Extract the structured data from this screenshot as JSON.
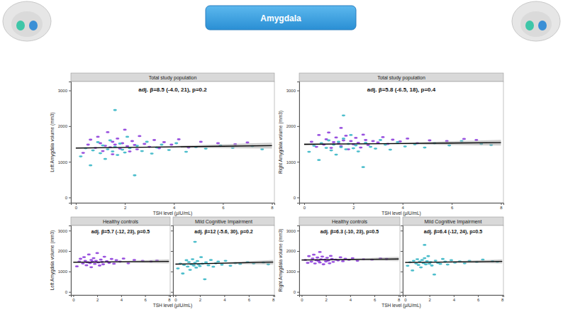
{
  "header": {
    "title": "Amygdala"
  },
  "chart_data": [
    {
      "type": "scatter",
      "y_label": "Left Amygdala volume (mm3)",
      "x_label": "TSH level (µIU/mL)",
      "xlim": [
        -0.2,
        8.1
      ],
      "ylim": [
        -150,
        3250
      ],
      "xticks": [
        0,
        2,
        4,
        6,
        8
      ],
      "yticks": [
        0,
        1000,
        2000,
        3000
      ],
      "grid": false,
      "panels": [
        {
          "title": "Total study population",
          "annotation": "adj. β=8.5 (-4.0, 21), p=0.2",
          "series": [
            {
              "color": "#8e3fdb",
              "marker": "dash",
              "x": [
                0.3,
                0.5,
                0.6,
                0.8,
                0.9,
                1.0,
                1.1,
                1.2,
                1.3,
                1.4,
                1.5,
                1.5,
                1.6,
                1.7,
                1.8,
                1.9,
                2.0,
                2.1,
                2.2,
                2.3,
                2.4,
                2.5,
                2.6,
                2.8,
                3.0,
                3.2,
                3.4,
                3.6,
                3.9,
                4.2,
                4.6,
                5.1,
                5.8,
                6.5,
                7.0
              ],
              "values": [
                1250,
                1480,
                1620,
                1390,
                1700,
                1520,
                1300,
                1450,
                1830,
                1410,
                1560,
                1210,
                1480,
                1650,
                1370,
                1520,
                1900,
                1440,
                1290,
                1580,
                1470,
                1350,
                1720,
                1500,
                1420,
                1610,
                1380,
                1550,
                1480,
                1630,
                1400,
                1560,
                1520,
                1490,
                1540
              ]
            },
            {
              "color": "#3ab7c6",
              "marker": "dash",
              "x": [
                0.2,
                0.4,
                0.6,
                0.7,
                0.9,
                1.0,
                1.1,
                1.2,
                1.3,
                1.4,
                1.5,
                1.6,
                1.7,
                1.8,
                1.9,
                2.0,
                2.1,
                2.2,
                2.4,
                2.5,
                2.7,
                2.9,
                3.1,
                3.3,
                3.5,
                3.8,
                4.1,
                4.5,
                4.9,
                5.3,
                5.9,
                6.4,
                7.2,
                7.6,
                1.6
              ],
              "values": [
                1150,
                1380,
                900,
                1320,
                1550,
                1240,
                1460,
                1080,
                1350,
                1600,
                1290,
                1420,
                1190,
                1510,
                1340,
                1260,
                1700,
                1380,
                620,
                1450,
                1300,
                1560,
                1230,
                1400,
                1480,
                1330,
                1520,
                1280,
                1410,
                1370,
                1460,
                1390,
                1440,
                1350,
                2450
              ]
            }
          ],
          "trend": {
            "x": [
              0,
              2,
              4,
              6,
              8
            ],
            "y": [
              1385,
              1402,
              1419,
              1436,
              1453
            ],
            "lower": [
              1360,
              1390,
              1395,
              1380,
              1370
            ],
            "upper": [
              1410,
              1414,
              1443,
              1492,
              1536
            ]
          }
        }
      ]
    },
    {
      "type": "scatter",
      "y_label": "Right Amygdala volume (mm3)",
      "x_label": "TSH level (µIU/mL)",
      "xlim": [
        -0.2,
        8.1
      ],
      "ylim": [
        -150,
        3250
      ],
      "xticks": [
        0,
        2,
        4,
        6,
        8
      ],
      "yticks": [
        0,
        1000,
        2000,
        3000
      ],
      "grid": false,
      "panels": [
        {
          "title": "Total study population",
          "annotation": "adj. β=5.8 (-6.5, 18), p=0.4",
          "series": [
            {
              "color": "#8e3fdb",
              "marker": "dash",
              "x": [
                0.3,
                0.5,
                0.6,
                0.8,
                0.9,
                1.0,
                1.1,
                1.2,
                1.3,
                1.4,
                1.5,
                1.5,
                1.6,
                1.7,
                1.8,
                1.9,
                2.0,
                2.1,
                2.2,
                2.3,
                2.4,
                2.5,
                2.6,
                2.8,
                3.0,
                3.2,
                3.4,
                3.6,
                3.9,
                4.2,
                4.6,
                5.1,
                5.8,
                6.5,
                7.0
              ],
              "values": [
                1560,
                1420,
                1750,
                1480,
                1630,
                1820,
                1390,
                1550,
                1680,
                1510,
                1950,
                1440,
                1600,
                1730,
                1350,
                1580,
                1490,
                1670,
                1530,
                1400,
                1760,
                1610,
                1470,
                1580,
                1540,
                1690,
                1500,
                1620,
                1570,
                1650,
                1520,
                1600,
                1580,
                1640,
                1610
              ]
            },
            {
              "color": "#3ab7c6",
              "marker": "dash",
              "x": [
                0.2,
                0.4,
                0.6,
                0.7,
                0.9,
                1.0,
                1.1,
                1.2,
                1.3,
                1.4,
                1.5,
                1.6,
                1.7,
                1.8,
                1.9,
                2.0,
                2.1,
                2.2,
                2.4,
                2.5,
                2.7,
                2.9,
                3.1,
                3.3,
                3.5,
                3.8,
                4.1,
                4.5,
                4.9,
                5.3,
                5.9,
                6.4,
                7.2,
                7.6,
                1.6
              ],
              "values": [
                1280,
                1450,
                1050,
                1520,
                1390,
                1600,
                1320,
                1480,
                1200,
                1560,
                1410,
                1650,
                1350,
                1500,
                1750,
                1380,
                1460,
                1290,
                850,
                1530,
                1420,
                1370,
                1610,
                1480,
                1340,
                1550,
                1430,
                1490,
                1400,
                1520,
                1460,
                1580,
                1500,
                1470,
                2300
              ]
            }
          ],
          "trend": {
            "x": [
              0,
              2,
              4,
              6,
              8
            ],
            "y": [
              1490,
              1502,
              1513,
              1525,
              1536
            ],
            "lower": [
              1465,
              1490,
              1490,
              1470,
              1455
            ],
            "upper": [
              1515,
              1514,
              1536,
              1580,
              1617
            ]
          }
        }
      ]
    },
    {
      "type": "scatter",
      "y_label": "Left Amygdala volume (mm3)",
      "x_label": "TSH level (µIU/mL)",
      "xlim": [
        -0.2,
        8.1
      ],
      "ylim": [
        -150,
        3250
      ],
      "xticks": [
        0,
        2,
        4,
        6,
        8
      ],
      "yticks": [
        0,
        1000,
        2000,
        3000
      ],
      "grid": false,
      "panels": [
        {
          "title": "Healthy controls",
          "annotation": "adj. β=5.7 (-12, 23), p=0.5",
          "series": [
            {
              "color": "#8e3fdb",
              "marker": "dash",
              "x": [
                0.3,
                0.5,
                0.6,
                0.8,
                0.9,
                1.0,
                1.1,
                1.2,
                1.3,
                1.4,
                1.5,
                1.5,
                1.6,
                1.7,
                1.8,
                1.9,
                2.0,
                2.1,
                2.2,
                2.3,
                2.4,
                2.5,
                2.6,
                2.8,
                3.0,
                3.2,
                3.4,
                3.6,
                3.9,
                4.2,
                4.6,
                5.1,
                5.8,
                6.5,
                7.0
              ],
              "values": [
                1250,
                1480,
                1620,
                1390,
                1700,
                1520,
                1300,
                1450,
                1830,
                1410,
                1560,
                1210,
                1480,
                1650,
                1370,
                1520,
                1900,
                1440,
                1290,
                1580,
                1470,
                1350,
                1720,
                1500,
                1420,
                1610,
                1380,
                1550,
                1480,
                1630,
                1400,
                1560,
                1520,
                1490,
                1540
              ]
            }
          ],
          "trend": {
            "x": [
              0,
              2,
              4,
              6,
              8
            ],
            "y": [
              1450,
              1461,
              1473,
              1484,
              1496
            ],
            "lower": [
              1415,
              1445,
              1440,
              1415,
              1395
            ],
            "upper": [
              1485,
              1477,
              1506,
              1553,
              1597
            ]
          }
        },
        {
          "title": "Mild Cognitive Impairment",
          "annotation": "adj. β=12 (-5.6, 30), p=0.2",
          "tick_labels": "x",
          "series": [
            {
              "color": "#3ab7c6",
              "marker": "dash",
              "x": [
                0.2,
                0.4,
                0.6,
                0.7,
                0.9,
                1.0,
                1.1,
                1.2,
                1.3,
                1.4,
                1.5,
                1.6,
                1.7,
                1.8,
                1.9,
                2.0,
                2.1,
                2.2,
                2.4,
                2.5,
                2.7,
                2.9,
                3.1,
                3.3,
                3.5,
                3.8,
                4.1,
                4.5,
                4.9,
                5.3,
                5.9,
                6.4,
                7.2,
                7.6,
                1.6
              ],
              "values": [
                1150,
                1380,
                900,
                1320,
                1550,
                1240,
                1460,
                1080,
                1350,
                1600,
                1290,
                1420,
                1190,
                1510,
                1340,
                1260,
                1700,
                1380,
                620,
                1450,
                1300,
                1560,
                1230,
                1400,
                1480,
                1330,
                1520,
                1280,
                1410,
                1370,
                1460,
                1390,
                1440,
                1350,
                2450
              ]
            }
          ],
          "trend": {
            "x": [
              0,
              2,
              4,
              6,
              8
            ],
            "y": [
              1360,
              1384,
              1408,
              1432,
              1456
            ],
            "lower": [
              1330,
              1365,
              1370,
              1360,
              1345
            ],
            "upper": [
              1390,
              1403,
              1446,
              1504,
              1567
            ]
          }
        }
      ]
    },
    {
      "type": "scatter",
      "y_label": "Right Amygdala volume (mm3)",
      "x_label": "TSH level (µIU/mL)",
      "xlim": [
        -0.2,
        8.1
      ],
      "ylim": [
        -150,
        3250
      ],
      "xticks": [
        0,
        2,
        4,
        6,
        8
      ],
      "yticks": [
        0,
        1000,
        2000,
        3000
      ],
      "grid": false,
      "panels": [
        {
          "title": "Healthy controls",
          "annotation": "adj. β=6.3 (-10, 23), p=0.5",
          "series": [
            {
              "color": "#8e3fdb",
              "marker": "dash",
              "x": [
                0.3,
                0.5,
                0.6,
                0.8,
                0.9,
                1.0,
                1.1,
                1.2,
                1.3,
                1.4,
                1.5,
                1.5,
                1.6,
                1.7,
                1.8,
                1.9,
                2.0,
                2.1,
                2.2,
                2.3,
                2.4,
                2.5,
                2.6,
                2.8,
                3.0,
                3.2,
                3.4,
                3.6,
                3.9,
                4.2,
                4.6,
                5.1,
                5.8,
                6.5,
                7.0
              ],
              "values": [
                1560,
                1420,
                1750,
                1480,
                1630,
                1820,
                1390,
                1550,
                1680,
                1510,
                1950,
                1440,
                1600,
                1730,
                1350,
                1580,
                1490,
                1670,
                1530,
                1400,
                1760,
                1610,
                1470,
                1580,
                1540,
                1690,
                1500,
                1620,
                1570,
                1650,
                1520,
                1600,
                1580,
                1640,
                1610
              ]
            }
          ],
          "trend": {
            "x": [
              0,
              2,
              4,
              6,
              8
            ],
            "y": [
              1560,
              1573,
              1585,
              1598,
              1610
            ],
            "lower": [
              1525,
              1555,
              1550,
              1525,
              1505
            ],
            "upper": [
              1595,
              1591,
              1620,
              1671,
              1715
            ]
          }
        },
        {
          "title": "Mild Cognitive Impairment",
          "annotation": "adj. β=6.4 (-12, 24), p=0.5",
          "tick_labels": "x",
          "series": [
            {
              "color": "#3ab7c6",
              "marker": "dash",
              "x": [
                0.2,
                0.4,
                0.6,
                0.7,
                0.9,
                1.0,
                1.1,
                1.2,
                1.3,
                1.4,
                1.5,
                1.6,
                1.7,
                1.8,
                1.9,
                2.0,
                2.1,
                2.2,
                2.4,
                2.5,
                2.7,
                2.9,
                3.1,
                3.3,
                3.5,
                3.8,
                4.1,
                4.5,
                4.9,
                5.3,
                5.9,
                6.4,
                7.2,
                7.6,
                1.6
              ],
              "values": [
                1280,
                1450,
                1050,
                1520,
                1390,
                1600,
                1320,
                1480,
                1200,
                1560,
                1410,
                1650,
                1350,
                1500,
                1750,
                1380,
                1460,
                1290,
                850,
                1530,
                1420,
                1370,
                1610,
                1480,
                1340,
                1550,
                1430,
                1490,
                1400,
                1520,
                1460,
                1580,
                1500,
                1470,
                2300
              ]
            }
          ],
          "trend": {
            "x": [
              0,
              2,
              4,
              6,
              8
            ],
            "y": [
              1440,
              1453,
              1466,
              1478,
              1491
            ],
            "lower": [
              1410,
              1435,
              1430,
              1410,
              1390
            ],
            "upper": [
              1470,
              1471,
              1502,
              1546,
              1592
            ]
          }
        }
      ]
    }
  ]
}
